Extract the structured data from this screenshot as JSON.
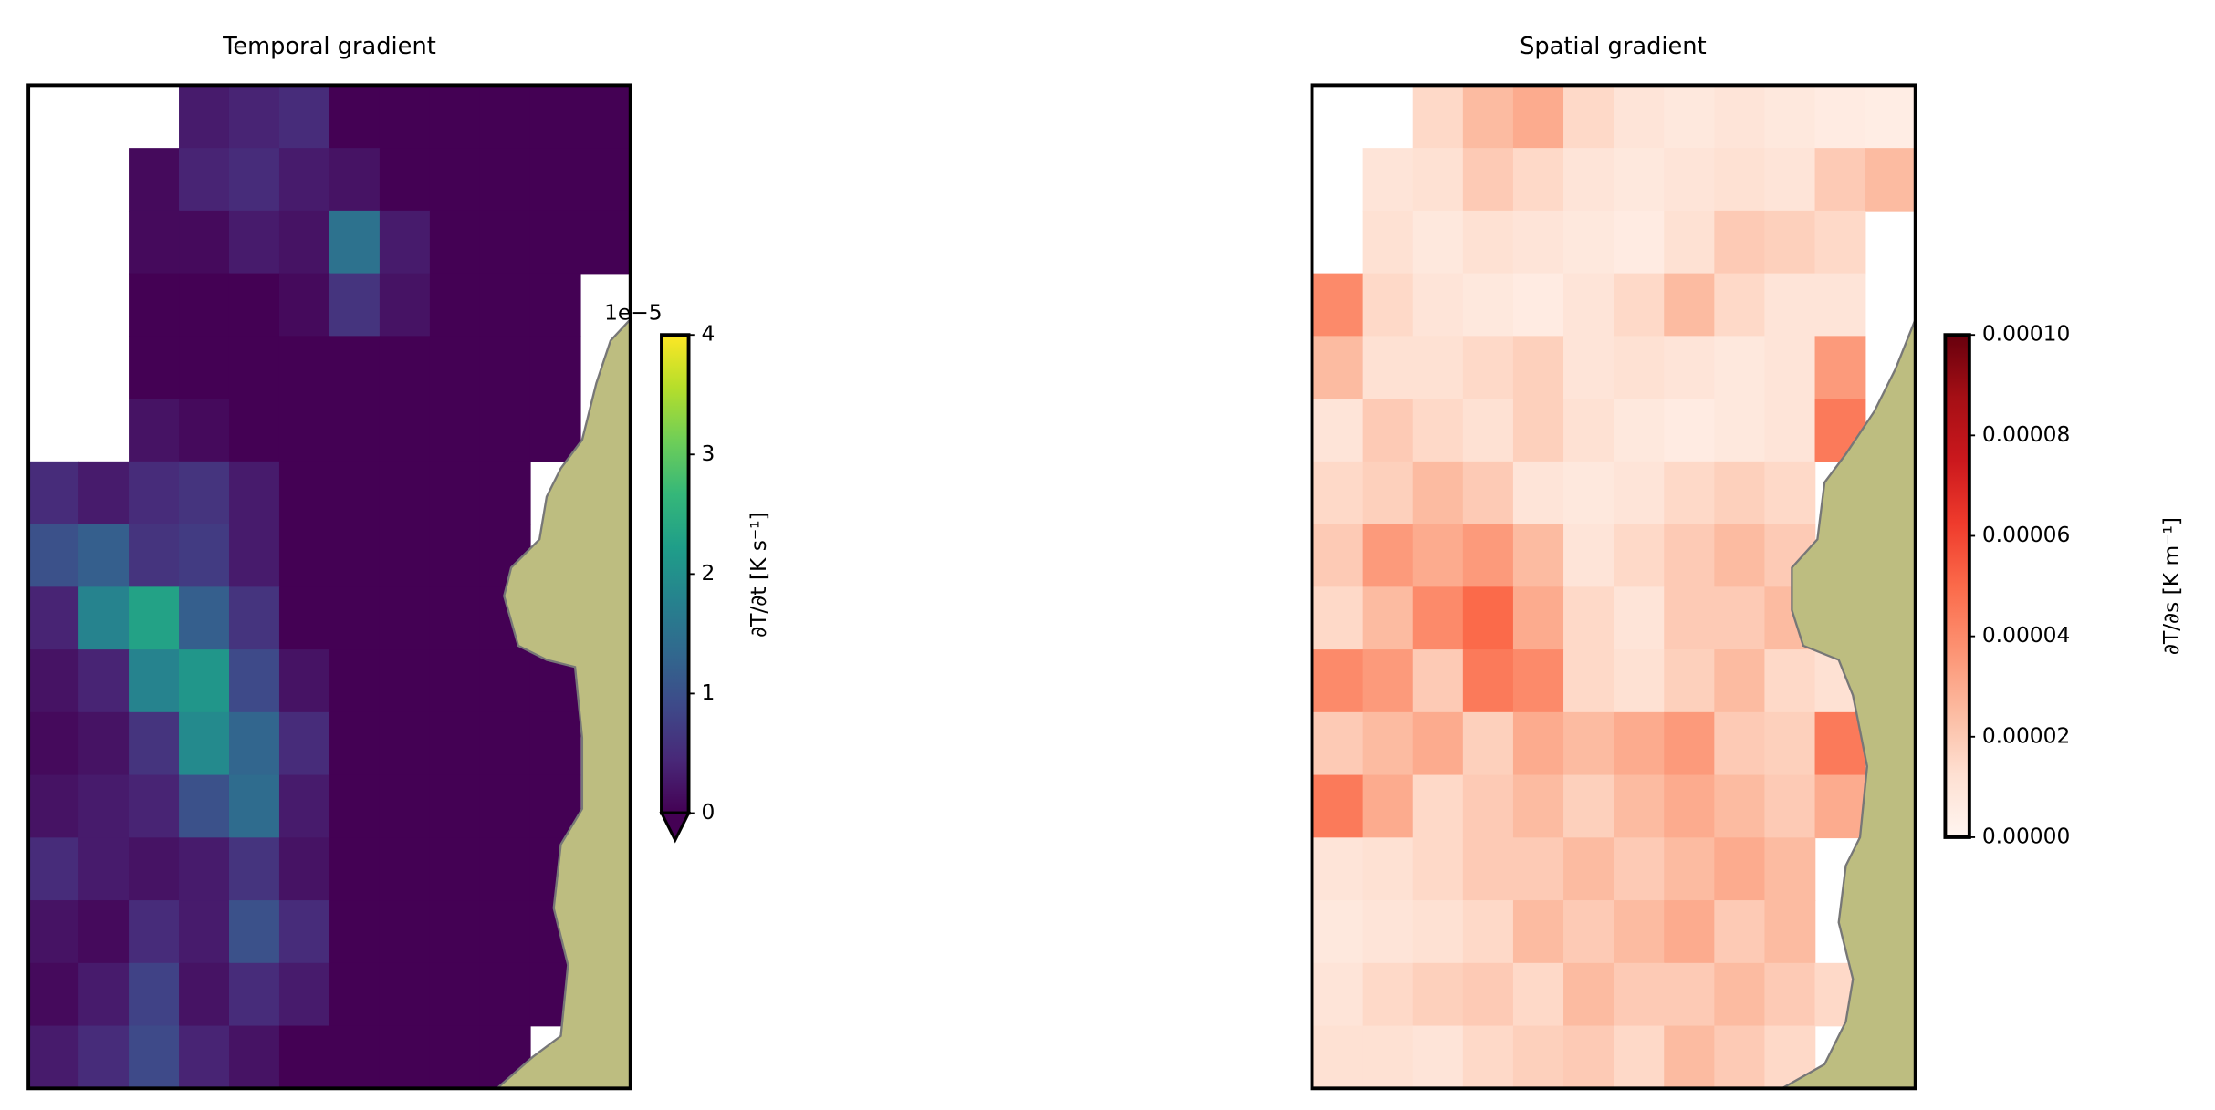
{
  "chart_data": [
    {
      "type": "heatmap",
      "title": "Temporal gradient",
      "colormap": "viridis",
      "extend": "min",
      "colorbar_label": "∂T/∂t [K s⁻¹]",
      "scale_label": "1e−5",
      "clim": [
        0,
        4
      ],
      "cticks": [
        0,
        1,
        2,
        3,
        4
      ],
      "z": [
        [
          null,
          null,
          null,
          0.3,
          0.4,
          0.5,
          0,
          0,
          0,
          0,
          0,
          0
        ],
        [
          null,
          null,
          0.1,
          0.4,
          0.5,
          0.3,
          0.2,
          0,
          0,
          0,
          0,
          0
        ],
        [
          null,
          null,
          0.1,
          0.1,
          0.3,
          0.2,
          1.5,
          0.3,
          0,
          0,
          0,
          0
        ],
        [
          null,
          null,
          0,
          0,
          0,
          0.1,
          0.6,
          0.2,
          0,
          0,
          0,
          null
        ],
        [
          null,
          null,
          0,
          0,
          0,
          0,
          0,
          0,
          0,
          0,
          0,
          null
        ],
        [
          null,
          null,
          0.2,
          0.1,
          0,
          0,
          0,
          0,
          0,
          0,
          0,
          null
        ],
        [
          0.5,
          0.3,
          0.5,
          0.6,
          0.3,
          0,
          0,
          0,
          0,
          0,
          null,
          null
        ],
        [
          1,
          1.2,
          0.6,
          0.7,
          0.3,
          0,
          0,
          0,
          0,
          0,
          null,
          null
        ],
        [
          0.4,
          1.8,
          2.3,
          1.2,
          0.6,
          0,
          0,
          0,
          0,
          0,
          0,
          null
        ],
        [
          0.2,
          0.4,
          1.8,
          2.1,
          0.9,
          0.2,
          0,
          0,
          0,
          0,
          0,
          null
        ],
        [
          0.1,
          0.2,
          0.6,
          1.9,
          1.3,
          0.5,
          0,
          0,
          0,
          0,
          0,
          null
        ],
        [
          0.2,
          0.3,
          0.4,
          1,
          1.4,
          0.3,
          0,
          0,
          0,
          0,
          0,
          null
        ],
        [
          0.5,
          0.3,
          0.2,
          0.3,
          0.6,
          0.2,
          0,
          0,
          0,
          0,
          0,
          null
        ],
        [
          0.2,
          0.1,
          0.5,
          0.3,
          1,
          0.5,
          0,
          0,
          0,
          0,
          0,
          null
        ],
        [
          0.1,
          0.3,
          0.8,
          0.2,
          0.5,
          0.3,
          0,
          0,
          0,
          0,
          0,
          null
        ],
        [
          0.3,
          0.5,
          0.9,
          0.4,
          0.2,
          0,
          0,
          0,
          0,
          0,
          null,
          null
        ]
      ]
    },
    {
      "type": "heatmap",
      "title": "Spatial gradient",
      "colormap": "Reds",
      "colorbar_label": "∂T/∂s [K m⁻¹]",
      "clim": [
        0,
        0.0001
      ],
      "cticks": [
        {
          "value": 0,
          "label": "0.00000"
        },
        {
          "value": 2e-05,
          "label": "0.00002"
        },
        {
          "value": 4e-05,
          "label": "0.00004"
        },
        {
          "value": 6e-05,
          "label": "0.00006"
        },
        {
          "value": 8e-05,
          "label": "0.00008"
        },
        {
          "value": 0.0001,
          "label": "0.00010"
        }
      ],
      "z": [
        [
          null,
          null,
          1.5e-05,
          2.5e-05,
          3e-05,
          1.5e-05,
          1e-05,
          8e-06,
          1e-05,
          8e-06,
          6e-06,
          5e-06
        ],
        [
          null,
          1e-05,
          1.2e-05,
          2e-05,
          1.5e-05,
          1e-05,
          8e-06,
          1e-05,
          1.2e-05,
          1e-05,
          2e-05,
          2.5e-05
        ],
        [
          null,
          1.2e-05,
          8e-06,
          1.2e-05,
          1e-05,
          8e-06,
          6e-06,
          1.2e-05,
          2e-05,
          1.8e-05,
          1.5e-05,
          null
        ],
        [
          4e-05,
          1.5e-05,
          1e-05,
          8e-06,
          6e-06,
          1e-05,
          1.5e-05,
          2.5e-05,
          1.5e-05,
          1e-05,
          1e-05,
          null
        ],
        [
          2.5e-05,
          1.2e-05,
          1.2e-05,
          1.5e-05,
          1.8e-05,
          1e-05,
          1.2e-05,
          1e-05,
          8e-06,
          1e-05,
          3.5e-05,
          null
        ],
        [
          1e-05,
          2e-05,
          1.5e-05,
          1.2e-05,
          1.8e-05,
          1.2e-05,
          8e-06,
          6e-06,
          8e-06,
          1e-05,
          4.5e-05,
          null
        ],
        [
          1.5e-05,
          1.8e-05,
          2.5e-05,
          2e-05,
          1e-05,
          8e-06,
          1e-05,
          1.5e-05,
          1.8e-05,
          1.5e-05,
          null,
          null
        ],
        [
          2e-05,
          3.5e-05,
          3e-05,
          3.5e-05,
          2.5e-05,
          1e-05,
          1.5e-05,
          2e-05,
          2.5e-05,
          2e-05,
          null,
          null
        ],
        [
          1.5e-05,
          2.5e-05,
          4e-05,
          5e-05,
          3e-05,
          1.5e-05,
          1e-05,
          2e-05,
          2e-05,
          2.5e-05,
          null,
          null
        ],
        [
          4e-05,
          3.5e-05,
          2e-05,
          4.5e-05,
          4e-05,
          1.5e-05,
          1.2e-05,
          1.8e-05,
          2.5e-05,
          1.5e-05,
          1.2e-05,
          null
        ],
        [
          2e-05,
          2.5e-05,
          3e-05,
          1.8e-05,
          3e-05,
          2.5e-05,
          3e-05,
          3.5e-05,
          2e-05,
          1.8e-05,
          4.5e-05,
          null
        ],
        [
          4.5e-05,
          3e-05,
          1.5e-05,
          2e-05,
          2.5e-05,
          1.8e-05,
          2.5e-05,
          3e-05,
          2.5e-05,
          2e-05,
          3e-05,
          null
        ],
        [
          1e-05,
          1.2e-05,
          1.5e-05,
          2e-05,
          2e-05,
          2.5e-05,
          2e-05,
          2.5e-05,
          3e-05,
          2.5e-05,
          null,
          null
        ],
        [
          8e-06,
          1e-05,
          1.2e-05,
          1.5e-05,
          2.5e-05,
          2e-05,
          2.5e-05,
          3e-05,
          2e-05,
          2.5e-05,
          null,
          null
        ],
        [
          1e-05,
          1.5e-05,
          1.8e-05,
          2e-05,
          1.5e-05,
          2.5e-05,
          2e-05,
          2e-05,
          2.5e-05,
          2e-05,
          1.5e-05,
          null
        ],
        [
          1.2e-05,
          1.2e-05,
          1e-05,
          1.5e-05,
          1.8e-05,
          2e-05,
          1.5e-05,
          2.5e-05,
          2e-05,
          1.5e-05,
          null,
          null
        ]
      ]
    }
  ]
}
